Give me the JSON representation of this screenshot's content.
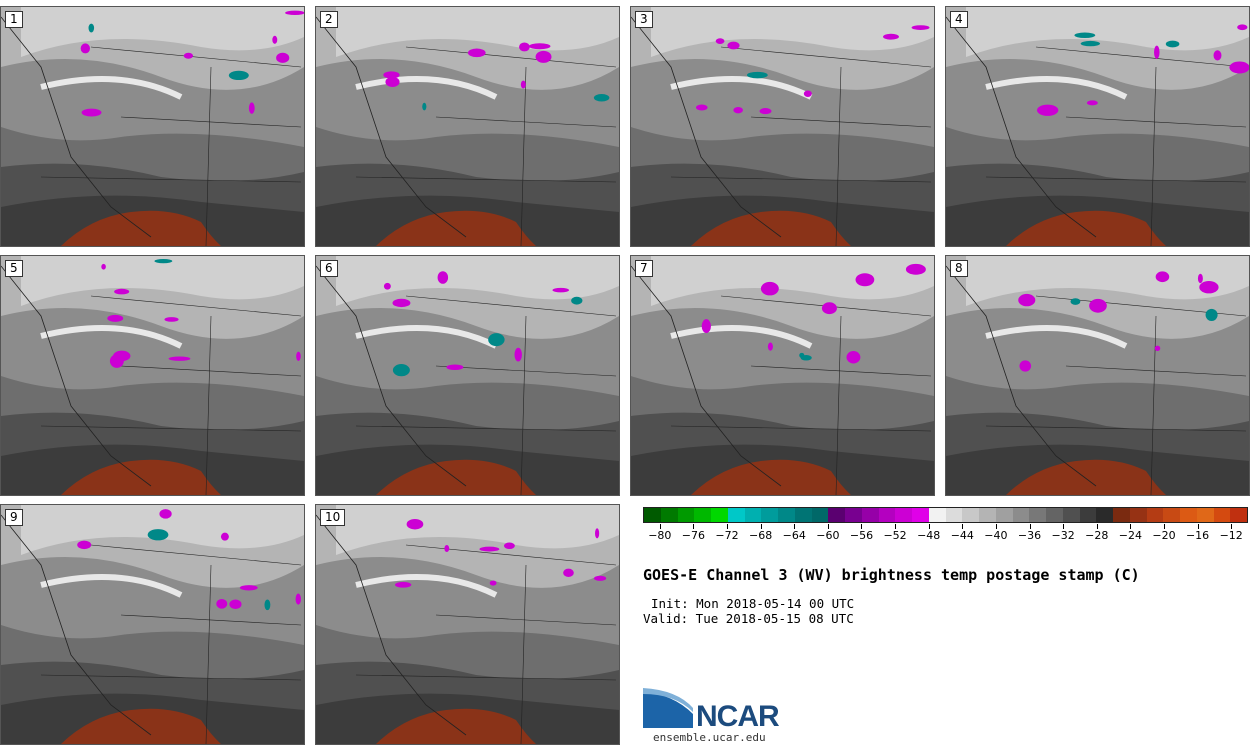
{
  "panels": [
    {
      "label": "1"
    },
    {
      "label": "2"
    },
    {
      "label": "3"
    },
    {
      "label": "4"
    },
    {
      "label": "5"
    },
    {
      "label": "6"
    },
    {
      "label": "7"
    },
    {
      "label": "8"
    },
    {
      "label": "9"
    },
    {
      "label": "10"
    }
  ],
  "colorbar": {
    "colors": [
      "#005a00",
      "#007a00",
      "#009a00",
      "#00b800",
      "#00d800",
      "#00c8c8",
      "#00b0b0",
      "#009c9c",
      "#008888",
      "#007474",
      "#006868",
      "#5a0070",
      "#780090",
      "#9600a8",
      "#b400c0",
      "#cc00d4",
      "#e000e8",
      "#f2f2f2",
      "#dcdcdc",
      "#c8c8c8",
      "#b4b4b4",
      "#a0a0a0",
      "#8c8c8c",
      "#787878",
      "#646464",
      "#505050",
      "#3c3c3c",
      "#2a2a2a",
      "#7a2a10",
      "#963214",
      "#b43c14",
      "#c84a14",
      "#dc5a14",
      "#e06818",
      "#d44a10",
      "#c03010"
    ],
    "tick_labels": [
      "−80",
      "−76",
      "−72",
      "−68",
      "−64",
      "−60",
      "−56",
      "−52",
      "−48",
      "−44",
      "−40",
      "−36",
      "−32",
      "−28",
      "−24",
      "−20",
      "−16",
      "−12"
    ],
    "min": -82,
    "max": -10
  },
  "title": "GOES-E Channel 3 (WV) brightness temp postage stamp (C)",
  "init_line": "Init: Mon 2018-05-14 00 UTC",
  "valid_line": "Valid: Tue 2018-05-15 08 UTC",
  "logo": {
    "text": "NCAR",
    "url": "ensemble.ucar.edu"
  }
}
